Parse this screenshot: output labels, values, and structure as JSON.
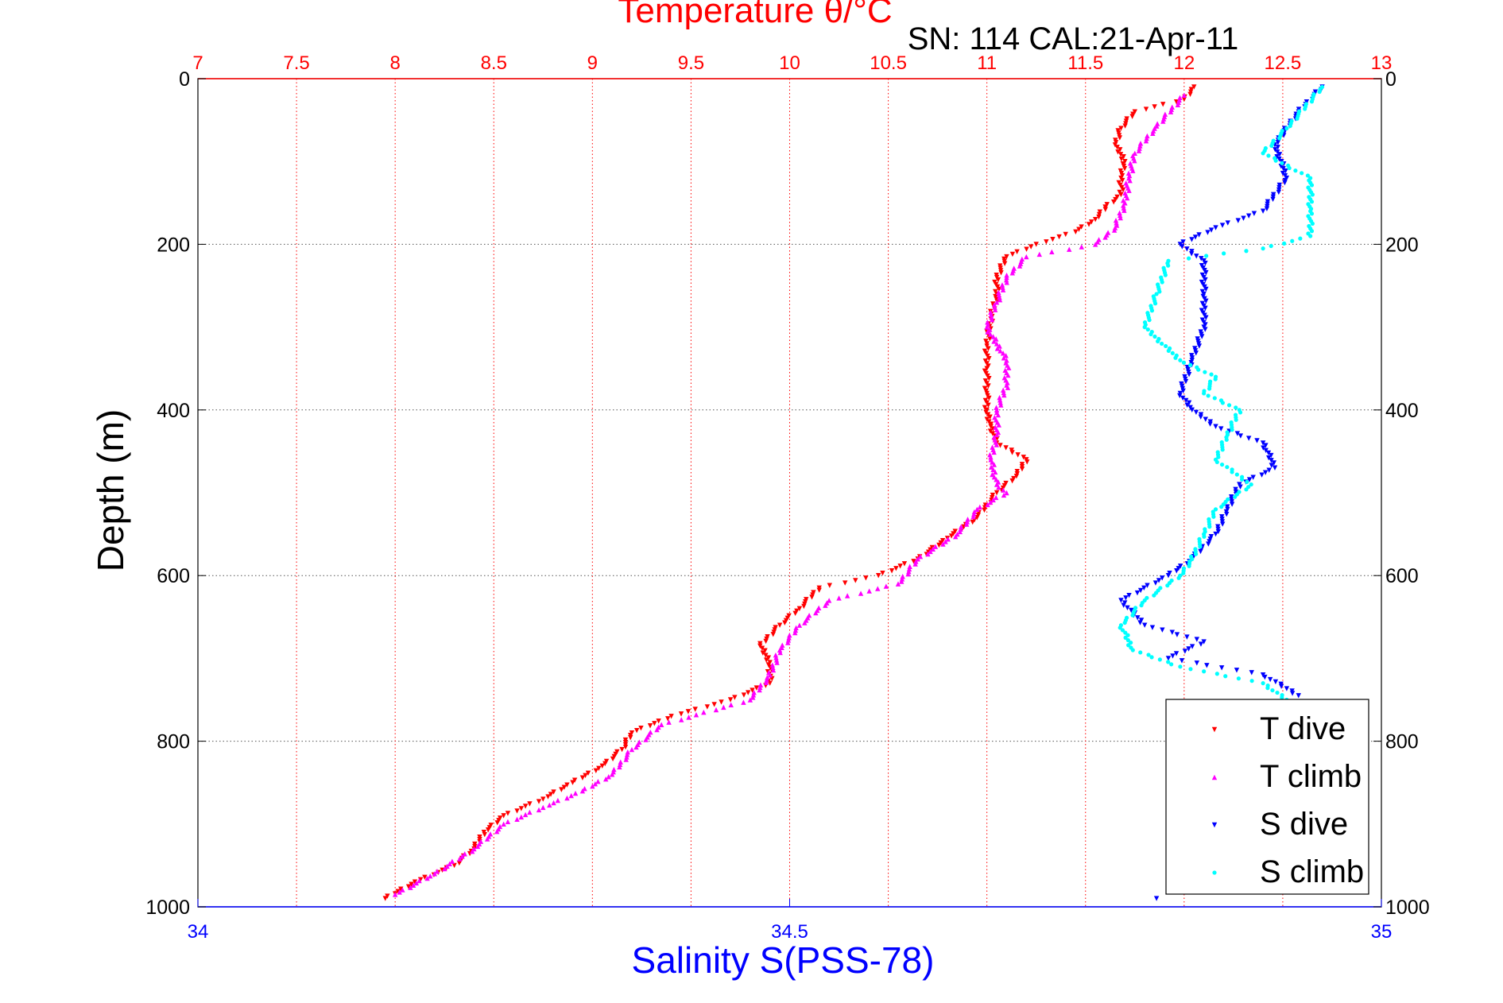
{
  "chart_data": {
    "type": "scatter",
    "title": "Temperature θ/°C",
    "subtitle": "SN: 114  CAL:21-Apr-11",
    "ylabel": "Depth (m)",
    "xlabel_bottom": "Salinity S(PSS-78)",
    "xlabel_top": "Temperature θ/°C",
    "y_axis": {
      "range": [
        0,
        1000
      ],
      "reversed": true,
      "ticks": [
        "0",
        "200",
        "400",
        "600",
        "800",
        "1000"
      ],
      "tick_values": [
        0,
        200,
        400,
        600,
        800,
        1000
      ]
    },
    "x_top_axis": {
      "quantity": "Temperature",
      "range": [
        7,
        13
      ],
      "ticks": [
        "7",
        "7.5",
        "8",
        "8.5",
        "9",
        "9.5",
        "10",
        "10.5",
        "11",
        "11.5",
        "12",
        "12.5",
        "13"
      ],
      "tick_values": [
        7,
        7.5,
        8,
        8.5,
        9,
        9.5,
        10,
        10.5,
        11,
        11.5,
        12,
        12.5,
        13
      ],
      "color": "#ff0000",
      "grid": true
    },
    "x_bottom_axis": {
      "quantity": "Salinity",
      "range": [
        34,
        35
      ],
      "ticks": [
        "34",
        "34.5",
        "35"
      ],
      "tick_values": [
        34,
        34.5,
        35
      ],
      "color": "#0000ff"
    },
    "legend": {
      "placement": "bottom-right"
    },
    "series": [
      {
        "name": "T dive",
        "axis": "temperature",
        "color": "#ff0000",
        "marker": "down-triangle",
        "points": [
          [
            12.05,
            10
          ],
          [
            12.0,
            25
          ],
          [
            11.75,
            40
          ],
          [
            11.68,
            60
          ],
          [
            11.65,
            80
          ],
          [
            11.7,
            100
          ],
          [
            11.68,
            120
          ],
          [
            11.68,
            140
          ],
          [
            11.6,
            155
          ],
          [
            11.55,
            170
          ],
          [
            11.45,
            185
          ],
          [
            11.25,
            200
          ],
          [
            11.1,
            215
          ],
          [
            11.05,
            240
          ],
          [
            11.05,
            260
          ],
          [
            11.02,
            290
          ],
          [
            11.0,
            320
          ],
          [
            11.0,
            350
          ],
          [
            11.0,
            380
          ],
          [
            11.0,
            400
          ],
          [
            11.02,
            420
          ],
          [
            11.05,
            440
          ],
          [
            11.2,
            460
          ],
          [
            11.15,
            480
          ],
          [
            11.05,
            500
          ],
          [
            10.95,
            530
          ],
          [
            10.8,
            555
          ],
          [
            10.65,
            580
          ],
          [
            10.45,
            600
          ],
          [
            10.15,
            615
          ],
          [
            10.05,
            640
          ],
          [
            9.95,
            660
          ],
          [
            9.85,
            685
          ],
          [
            9.9,
            705
          ],
          [
            9.9,
            730
          ],
          [
            9.7,
            750
          ],
          [
            9.4,
            770
          ],
          [
            9.2,
            790
          ],
          [
            9.15,
            810
          ],
          [
            9.05,
            830
          ],
          [
            8.9,
            850
          ],
          [
            8.75,
            870
          ],
          [
            8.55,
            890
          ],
          [
            8.45,
            910
          ],
          [
            8.4,
            930
          ],
          [
            8.3,
            950
          ],
          [
            8.1,
            970
          ],
          [
            7.95,
            990
          ]
        ]
      },
      {
        "name": "T climb",
        "axis": "temperature",
        "color": "#ff00ff",
        "marker": "up-triangle",
        "points": [
          [
            12.0,
            20
          ],
          [
            11.85,
            60
          ],
          [
            11.75,
            90
          ],
          [
            11.72,
            120
          ],
          [
            11.7,
            150
          ],
          [
            11.65,
            180
          ],
          [
            11.55,
            200
          ],
          [
            11.2,
            215
          ],
          [
            11.1,
            240
          ],
          [
            11.05,
            270
          ],
          [
            11.0,
            300
          ],
          [
            11.1,
            340
          ],
          [
            11.1,
            370
          ],
          [
            11.05,
            400
          ],
          [
            11.05,
            430
          ],
          [
            11.02,
            460
          ],
          [
            11.05,
            490
          ],
          [
            11.1,
            500
          ],
          [
            10.95,
            520
          ],
          [
            10.85,
            550
          ],
          [
            10.65,
            580
          ],
          [
            10.55,
            610
          ],
          [
            10.2,
            630
          ],
          [
            10.05,
            660
          ],
          [
            9.95,
            690
          ],
          [
            9.9,
            720
          ],
          [
            9.8,
            750
          ],
          [
            9.35,
            780
          ],
          [
            9.2,
            810
          ],
          [
            9.1,
            840
          ],
          [
            8.95,
            860
          ],
          [
            8.75,
            880
          ],
          [
            8.55,
            900
          ],
          [
            8.4,
            930
          ],
          [
            8.2,
            960
          ],
          [
            8.0,
            985
          ]
        ]
      },
      {
        "name": "S dive",
        "axis": "salinity",
        "color": "#0000ff",
        "marker": "down-triangle",
        "points": [
          [
            34.95,
            10
          ],
          [
            34.93,
            40
          ],
          [
            34.91,
            80
          ],
          [
            34.92,
            120
          ],
          [
            34.9,
            160
          ],
          [
            34.86,
            180
          ],
          [
            34.83,
            200
          ],
          [
            34.85,
            220
          ],
          [
            34.85,
            260
          ],
          [
            34.85,
            300
          ],
          [
            34.84,
            340
          ],
          [
            34.83,
            380
          ],
          [
            34.84,
            400
          ],
          [
            34.86,
            420
          ],
          [
            34.9,
            440
          ],
          [
            34.91,
            470
          ],
          [
            34.88,
            490
          ],
          [
            34.87,
            520
          ],
          [
            34.86,
            550
          ],
          [
            34.84,
            580
          ],
          [
            34.82,
            600
          ],
          [
            34.78,
            630
          ],
          [
            34.8,
            660
          ],
          [
            34.85,
            680
          ],
          [
            34.82,
            700
          ],
          [
            34.9,
            720
          ],
          [
            34.93,
            745
          ],
          [
            34.81,
            990
          ]
        ]
      },
      {
        "name": "S climb",
        "axis": "salinity",
        "color": "#00ffff",
        "marker": "dot",
        "points": [
          [
            34.95,
            10
          ],
          [
            34.92,
            60
          ],
          [
            34.9,
            90
          ],
          [
            34.94,
            120
          ],
          [
            34.94,
            160
          ],
          [
            34.94,
            190
          ],
          [
            34.9,
            205
          ],
          [
            34.82,
            220
          ],
          [
            34.81,
            260
          ],
          [
            34.8,
            300
          ],
          [
            34.83,
            340
          ],
          [
            34.86,
            360
          ],
          [
            34.85,
            380
          ],
          [
            34.88,
            400
          ],
          [
            34.87,
            430
          ],
          [
            34.86,
            460
          ],
          [
            34.89,
            490
          ],
          [
            34.86,
            520
          ],
          [
            34.85,
            550
          ],
          [
            34.84,
            580
          ],
          [
            34.83,
            600
          ],
          [
            34.8,
            630
          ],
          [
            34.78,
            660
          ],
          [
            34.79,
            690
          ],
          [
            34.83,
            710
          ],
          [
            34.9,
            730
          ],
          [
            34.92,
            750
          ]
        ]
      }
    ]
  }
}
